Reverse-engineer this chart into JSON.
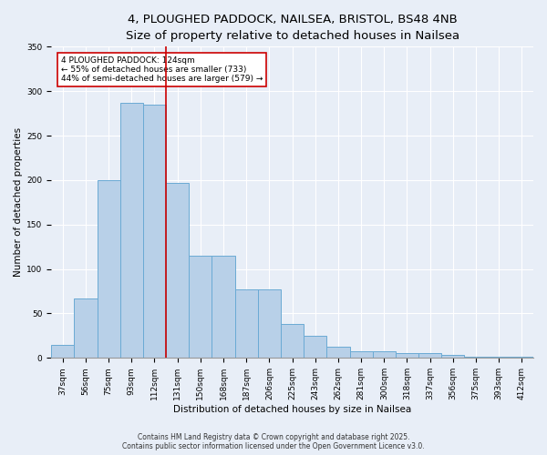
{
  "title_line1": "4, PLOUGHED PADDOCK, NAILSEA, BRISTOL, BS48 4NB",
  "title_line2": "Size of property relative to detached houses in Nailsea",
  "xlabel": "Distribution of detached houses by size in Nailsea",
  "ylabel": "Number of detached properties",
  "categories": [
    "37sqm",
    "56sqm",
    "75sqm",
    "93sqm",
    "112sqm",
    "131sqm",
    "150sqm",
    "168sqm",
    "187sqm",
    "206sqm",
    "225sqm",
    "243sqm",
    "262sqm",
    "281sqm",
    "300sqm",
    "318sqm",
    "337sqm",
    "356sqm",
    "375sqm",
    "393sqm",
    "412sqm"
  ],
  "values": [
    15,
    67,
    200,
    287,
    285,
    197,
    115,
    115,
    77,
    77,
    38,
    25,
    13,
    8,
    8,
    5,
    5,
    3,
    1,
    1,
    1
  ],
  "bar_color": "#b8d0e8",
  "bar_edge_color": "#6aaad4",
  "vline_position": 4.5,
  "vline_color": "#cc0000",
  "annotation_text": "4 PLOUGHED PADDOCK: 124sqm\n← 55% of detached houses are smaller (733)\n44% of semi-detached houses are larger (579) →",
  "annotation_box_color": "#ffffff",
  "annotation_box_edge": "#cc0000",
  "ylim": [
    0,
    350
  ],
  "yticks": [
    0,
    50,
    100,
    150,
    200,
    250,
    300,
    350
  ],
  "background_color": "#e8eef7",
  "plot_bg_color": "#e8eef7",
  "footer_line1": "Contains HM Land Registry data © Crown copyright and database right 2025.",
  "footer_line2": "Contains public sector information licensed under the Open Government Licence v3.0.",
  "title_fontsize": 9.5,
  "title2_fontsize": 8.5,
  "axis_label_fontsize": 7.5,
  "tick_fontsize": 6.5,
  "annotation_fontsize": 6.5,
  "footer_fontsize": 5.5
}
